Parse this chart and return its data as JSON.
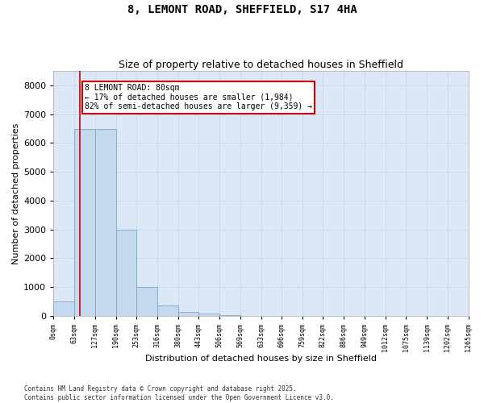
{
  "title": "8, LEMONT ROAD, SHEFFIELD, S17 4HA",
  "subtitle": "Size of property relative to detached houses in Sheffield",
  "xlabel": "Distribution of detached houses by size in Sheffield",
  "ylabel": "Number of detached properties",
  "bar_color": "#c5d9ee",
  "bar_edge_color": "#7aa8cc",
  "bar_values": [
    500,
    6500,
    6500,
    3000,
    1000,
    350,
    130,
    80,
    30,
    0,
    0,
    0,
    0,
    0,
    0,
    0,
    0,
    0,
    0,
    0
  ],
  "bin_edges": [
    0,
    63,
    127,
    190,
    253,
    316,
    380,
    443,
    506,
    569,
    633,
    696,
    759,
    822,
    886,
    949,
    1012,
    1075,
    1139,
    1202,
    1265
  ],
  "tick_labels": [
    "0sqm",
    "63sqm",
    "127sqm",
    "190sqm",
    "253sqm",
    "316sqm",
    "380sqm",
    "443sqm",
    "506sqm",
    "569sqm",
    "633sqm",
    "696sqm",
    "759sqm",
    "822sqm",
    "886sqm",
    "949sqm",
    "1012sqm",
    "1075sqm",
    "1139sqm",
    "1202sqm",
    "1265sqm"
  ],
  "ylim": [
    0,
    8500
  ],
  "yticks": [
    0,
    1000,
    2000,
    3000,
    4000,
    5000,
    6000,
    7000,
    8000
  ],
  "property_line_x": 80,
  "annotation_text": "8 LEMONT ROAD: 80sqm\n← 17% of detached houses are smaller (1,984)\n82% of semi-detached houses are larger (9,359) →",
  "annotation_box_color": "#ffffff",
  "annotation_border_color": "#cc0000",
  "grid_color": "#c8d8ec",
  "bg_color": "#dce8f5",
  "fig_bg_color": "#ffffff",
  "footer_text": "Contains HM Land Registry data © Crown copyright and database right 2025.\nContains public sector information licensed under the Open Government Licence v3.0.",
  "vline_color": "#cc0000",
  "title_fontsize": 10,
  "subtitle_fontsize": 9
}
